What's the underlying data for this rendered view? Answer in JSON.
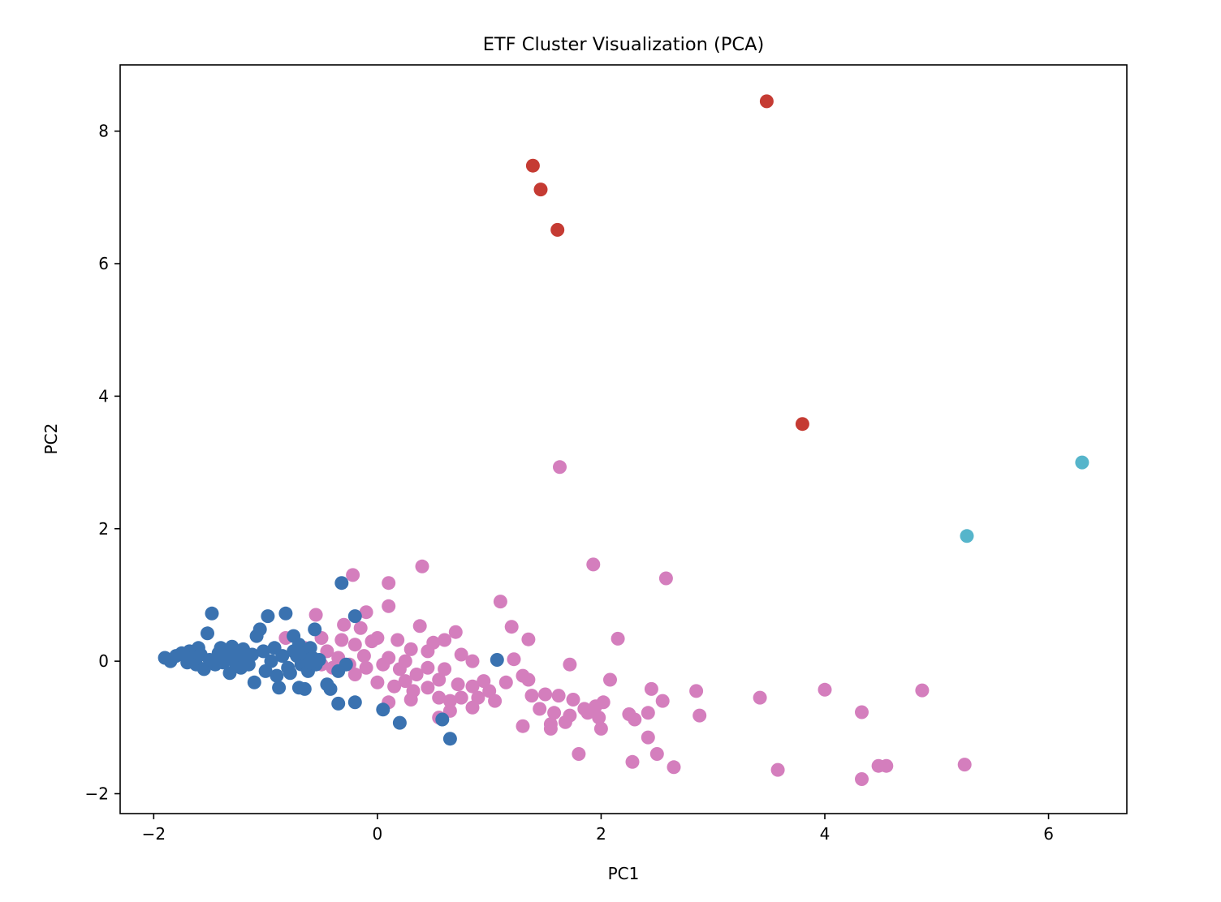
{
  "chart_data": {
    "type": "scatter",
    "title": "ETF Cluster Visualization (PCA)",
    "xlabel": "PC1",
    "ylabel": "PC2",
    "xlim": [
      -2.3,
      6.7
    ],
    "ylim": [
      -2.3,
      9.0
    ],
    "grid": false,
    "legend": "none",
    "x_ticks": [
      {
        "v": -2,
        "label": "−2"
      },
      {
        "v": 0,
        "label": "0"
      },
      {
        "v": 2,
        "label": "2"
      },
      {
        "v": 4,
        "label": "4"
      },
      {
        "v": 6,
        "label": "6"
      }
    ],
    "y_ticks": [
      {
        "v": -2,
        "label": "−2"
      },
      {
        "v": 0,
        "label": "0"
      },
      {
        "v": 2,
        "label": "2"
      },
      {
        "v": 4,
        "label": "4"
      },
      {
        "v": 6,
        "label": "6"
      },
      {
        "v": 8,
        "label": "8"
      }
    ],
    "series": [
      {
        "color": "#d47ebd",
        "points": [
          [
            -0.55,
            0.7
          ],
          [
            -0.22,
            1.3
          ],
          [
            0.1,
            1.18
          ],
          [
            0.4,
            1.43
          ],
          [
            -0.1,
            0.74
          ],
          [
            0.1,
            0.83
          ],
          [
            0.38,
            0.53
          ],
          [
            0.7,
            0.44
          ],
          [
            -0.5,
            0.35
          ],
          [
            -0.45,
            0.15
          ],
          [
            -0.3,
            0.55
          ],
          [
            -0.15,
            0.5
          ],
          [
            -0.2,
            0.25
          ],
          [
            -0.05,
            0.3
          ],
          [
            0.0,
            0.35
          ],
          [
            0.18,
            0.32
          ],
          [
            0.3,
            0.18
          ],
          [
            0.5,
            0.28
          ],
          [
            0.6,
            0.32
          ],
          [
            0.75,
            0.1
          ],
          [
            -0.35,
            0.05
          ],
          [
            -0.25,
            -0.05
          ],
          [
            -0.1,
            -0.1
          ],
          [
            0.05,
            -0.05
          ],
          [
            0.1,
            0.05
          ],
          [
            0.2,
            -0.12
          ],
          [
            0.35,
            -0.2
          ],
          [
            0.45,
            -0.1
          ],
          [
            0.55,
            -0.28
          ],
          [
            0.6,
            -0.12
          ],
          [
            -0.4,
            -0.1
          ],
          [
            -0.2,
            -0.2
          ],
          [
            0.0,
            -0.32
          ],
          [
            0.15,
            -0.38
          ],
          [
            0.25,
            -0.3
          ],
          [
            0.32,
            -0.45
          ],
          [
            0.45,
            -0.4
          ],
          [
            0.55,
            -0.55
          ],
          [
            0.65,
            -0.6
          ],
          [
            0.72,
            -0.35
          ],
          [
            0.85,
            -0.38
          ],
          [
            0.9,
            -0.55
          ],
          [
            0.95,
            -0.3
          ],
          [
            1.0,
            -0.45
          ],
          [
            1.05,
            -0.6
          ],
          [
            0.85,
            -0.7
          ],
          [
            0.75,
            -0.55
          ],
          [
            0.65,
            -0.75
          ],
          [
            0.1,
            -0.62
          ],
          [
            0.3,
            -0.58
          ],
          [
            0.55,
            -0.85
          ],
          [
            0.85,
            0.0
          ],
          [
            1.1,
            0.9
          ],
          [
            1.2,
            0.52
          ],
          [
            1.35,
            0.33
          ],
          [
            1.22,
            0.03
          ],
          [
            1.15,
            -0.32
          ],
          [
            1.3,
            -0.22
          ],
          [
            1.35,
            -0.28
          ],
          [
            1.38,
            -0.52
          ],
          [
            1.45,
            -0.72
          ],
          [
            1.5,
            -0.5
          ],
          [
            1.55,
            -0.95
          ],
          [
            1.58,
            -0.78
          ],
          [
            1.62,
            -0.52
          ],
          [
            1.68,
            -0.92
          ],
          [
            1.72,
            -0.82
          ],
          [
            1.75,
            -0.58
          ],
          [
            1.85,
            -0.72
          ],
          [
            1.88,
            -0.78
          ],
          [
            1.95,
            -0.68
          ],
          [
            1.98,
            -0.85
          ],
          [
            2.02,
            -0.62
          ],
          [
            2.0,
            -1.02
          ],
          [
            2.08,
            -0.28
          ],
          [
            1.72,
            -0.05
          ],
          [
            1.3,
            -0.98
          ],
          [
            1.55,
            -1.02
          ],
          [
            1.8,
            -1.4
          ],
          [
            2.25,
            -0.8
          ],
          [
            2.3,
            -0.88
          ],
          [
            2.42,
            -0.78
          ],
          [
            2.45,
            -0.42
          ],
          [
            2.55,
            -0.6
          ],
          [
            2.42,
            -1.15
          ],
          [
            2.5,
            -1.4
          ],
          [
            2.28,
            -1.52
          ],
          [
            2.65,
            -1.6
          ],
          [
            2.85,
            -0.45
          ],
          [
            2.88,
            -0.82
          ],
          [
            2.15,
            0.34
          ],
          [
            1.93,
            1.46
          ],
          [
            2.58,
            1.25
          ],
          [
            1.63,
            2.93
          ],
          [
            3.42,
            -0.55
          ],
          [
            3.58,
            -1.64
          ],
          [
            4.0,
            -0.43
          ],
          [
            4.33,
            -0.77
          ],
          [
            4.33,
            -1.78
          ],
          [
            4.48,
            -1.58
          ],
          [
            4.55,
            -1.58
          ],
          [
            4.87,
            -0.44
          ],
          [
            5.25,
            -1.56
          ],
          [
            -0.82,
            0.35
          ],
          [
            -0.65,
            0.2
          ],
          [
            -0.5,
            -0.05
          ],
          [
            -0.32,
            0.32
          ],
          [
            -0.12,
            0.08
          ],
          [
            0.25,
            0.0
          ],
          [
            0.45,
            0.15
          ]
        ]
      },
      {
        "color": "#3a72b0",
        "points": [
          [
            -1.9,
            0.05
          ],
          [
            -1.85,
            0.0
          ],
          [
            -1.8,
            0.08
          ],
          [
            -1.75,
            0.12
          ],
          [
            -1.7,
            -0.02
          ],
          [
            -1.68,
            0.15
          ],
          [
            -1.65,
            0.05
          ],
          [
            -1.62,
            -0.05
          ],
          [
            -1.6,
            0.2
          ],
          [
            -1.58,
            0.1
          ],
          [
            -1.55,
            -0.12
          ],
          [
            -1.52,
            0.42
          ],
          [
            -1.5,
            0.02
          ],
          [
            -1.48,
            0.72
          ],
          [
            -1.45,
            -0.05
          ],
          [
            -1.42,
            0.12
          ],
          [
            -1.4,
            0.2
          ],
          [
            -1.38,
            -0.02
          ],
          [
            -1.35,
            0.08
          ],
          [
            -1.32,
            -0.18
          ],
          [
            -1.3,
            0.22
          ],
          [
            -1.28,
            0.0
          ],
          [
            -1.25,
            0.12
          ],
          [
            -1.22,
            -0.1
          ],
          [
            -1.2,
            0.18
          ],
          [
            -1.18,
            0.05
          ],
          [
            -1.15,
            -0.05
          ],
          [
            -1.12,
            0.1
          ],
          [
            -1.1,
            -0.32
          ],
          [
            -1.08,
            0.38
          ],
          [
            -1.05,
            0.48
          ],
          [
            -1.02,
            0.15
          ],
          [
            -1.0,
            -0.15
          ],
          [
            -0.98,
            0.68
          ],
          [
            -0.95,
            0.0
          ],
          [
            -0.92,
            0.2
          ],
          [
            -0.9,
            -0.22
          ],
          [
            -0.88,
            -0.4
          ],
          [
            -0.85,
            0.08
          ],
          [
            -0.82,
            0.72
          ],
          [
            -0.8,
            -0.1
          ],
          [
            -0.78,
            -0.18
          ],
          [
            -0.75,
            0.38
          ],
          [
            -0.72,
            0.08
          ],
          [
            -0.7,
            0.25
          ],
          [
            -0.68,
            -0.05
          ],
          [
            -0.65,
            0.12
          ],
          [
            -0.62,
            -0.15
          ],
          [
            -0.6,
            0.2
          ],
          [
            -0.58,
            0.05
          ],
          [
            -0.56,
            0.48
          ],
          [
            -0.55,
            -0.05
          ],
          [
            -0.52,
            0.02
          ],
          [
            -0.7,
            -0.4
          ],
          [
            -0.65,
            -0.42
          ],
          [
            -0.45,
            -0.35
          ],
          [
            -0.42,
            -0.42
          ],
          [
            -0.35,
            -0.15
          ],
          [
            -0.32,
            1.18
          ],
          [
            -0.28,
            -0.05
          ],
          [
            -0.2,
            0.68
          ],
          [
            -0.2,
            -0.62
          ],
          [
            -0.35,
            -0.64
          ],
          [
            0.05,
            -0.73
          ],
          [
            0.2,
            -0.93
          ],
          [
            0.58,
            -0.88
          ],
          [
            0.65,
            -1.17
          ],
          [
            1.07,
            0.02
          ],
          [
            -0.75,
            0.15
          ],
          [
            -0.6,
            -0.02
          ]
        ]
      },
      {
        "color": "#c53b33",
        "points": [
          [
            3.48,
            8.45
          ],
          [
            1.39,
            7.48
          ],
          [
            1.46,
            7.12
          ],
          [
            1.61,
            6.51
          ],
          [
            3.8,
            3.58
          ]
        ]
      },
      {
        "color": "#56b5cb",
        "points": [
          [
            6.3,
            3.0
          ],
          [
            5.27,
            1.89
          ]
        ]
      }
    ]
  }
}
